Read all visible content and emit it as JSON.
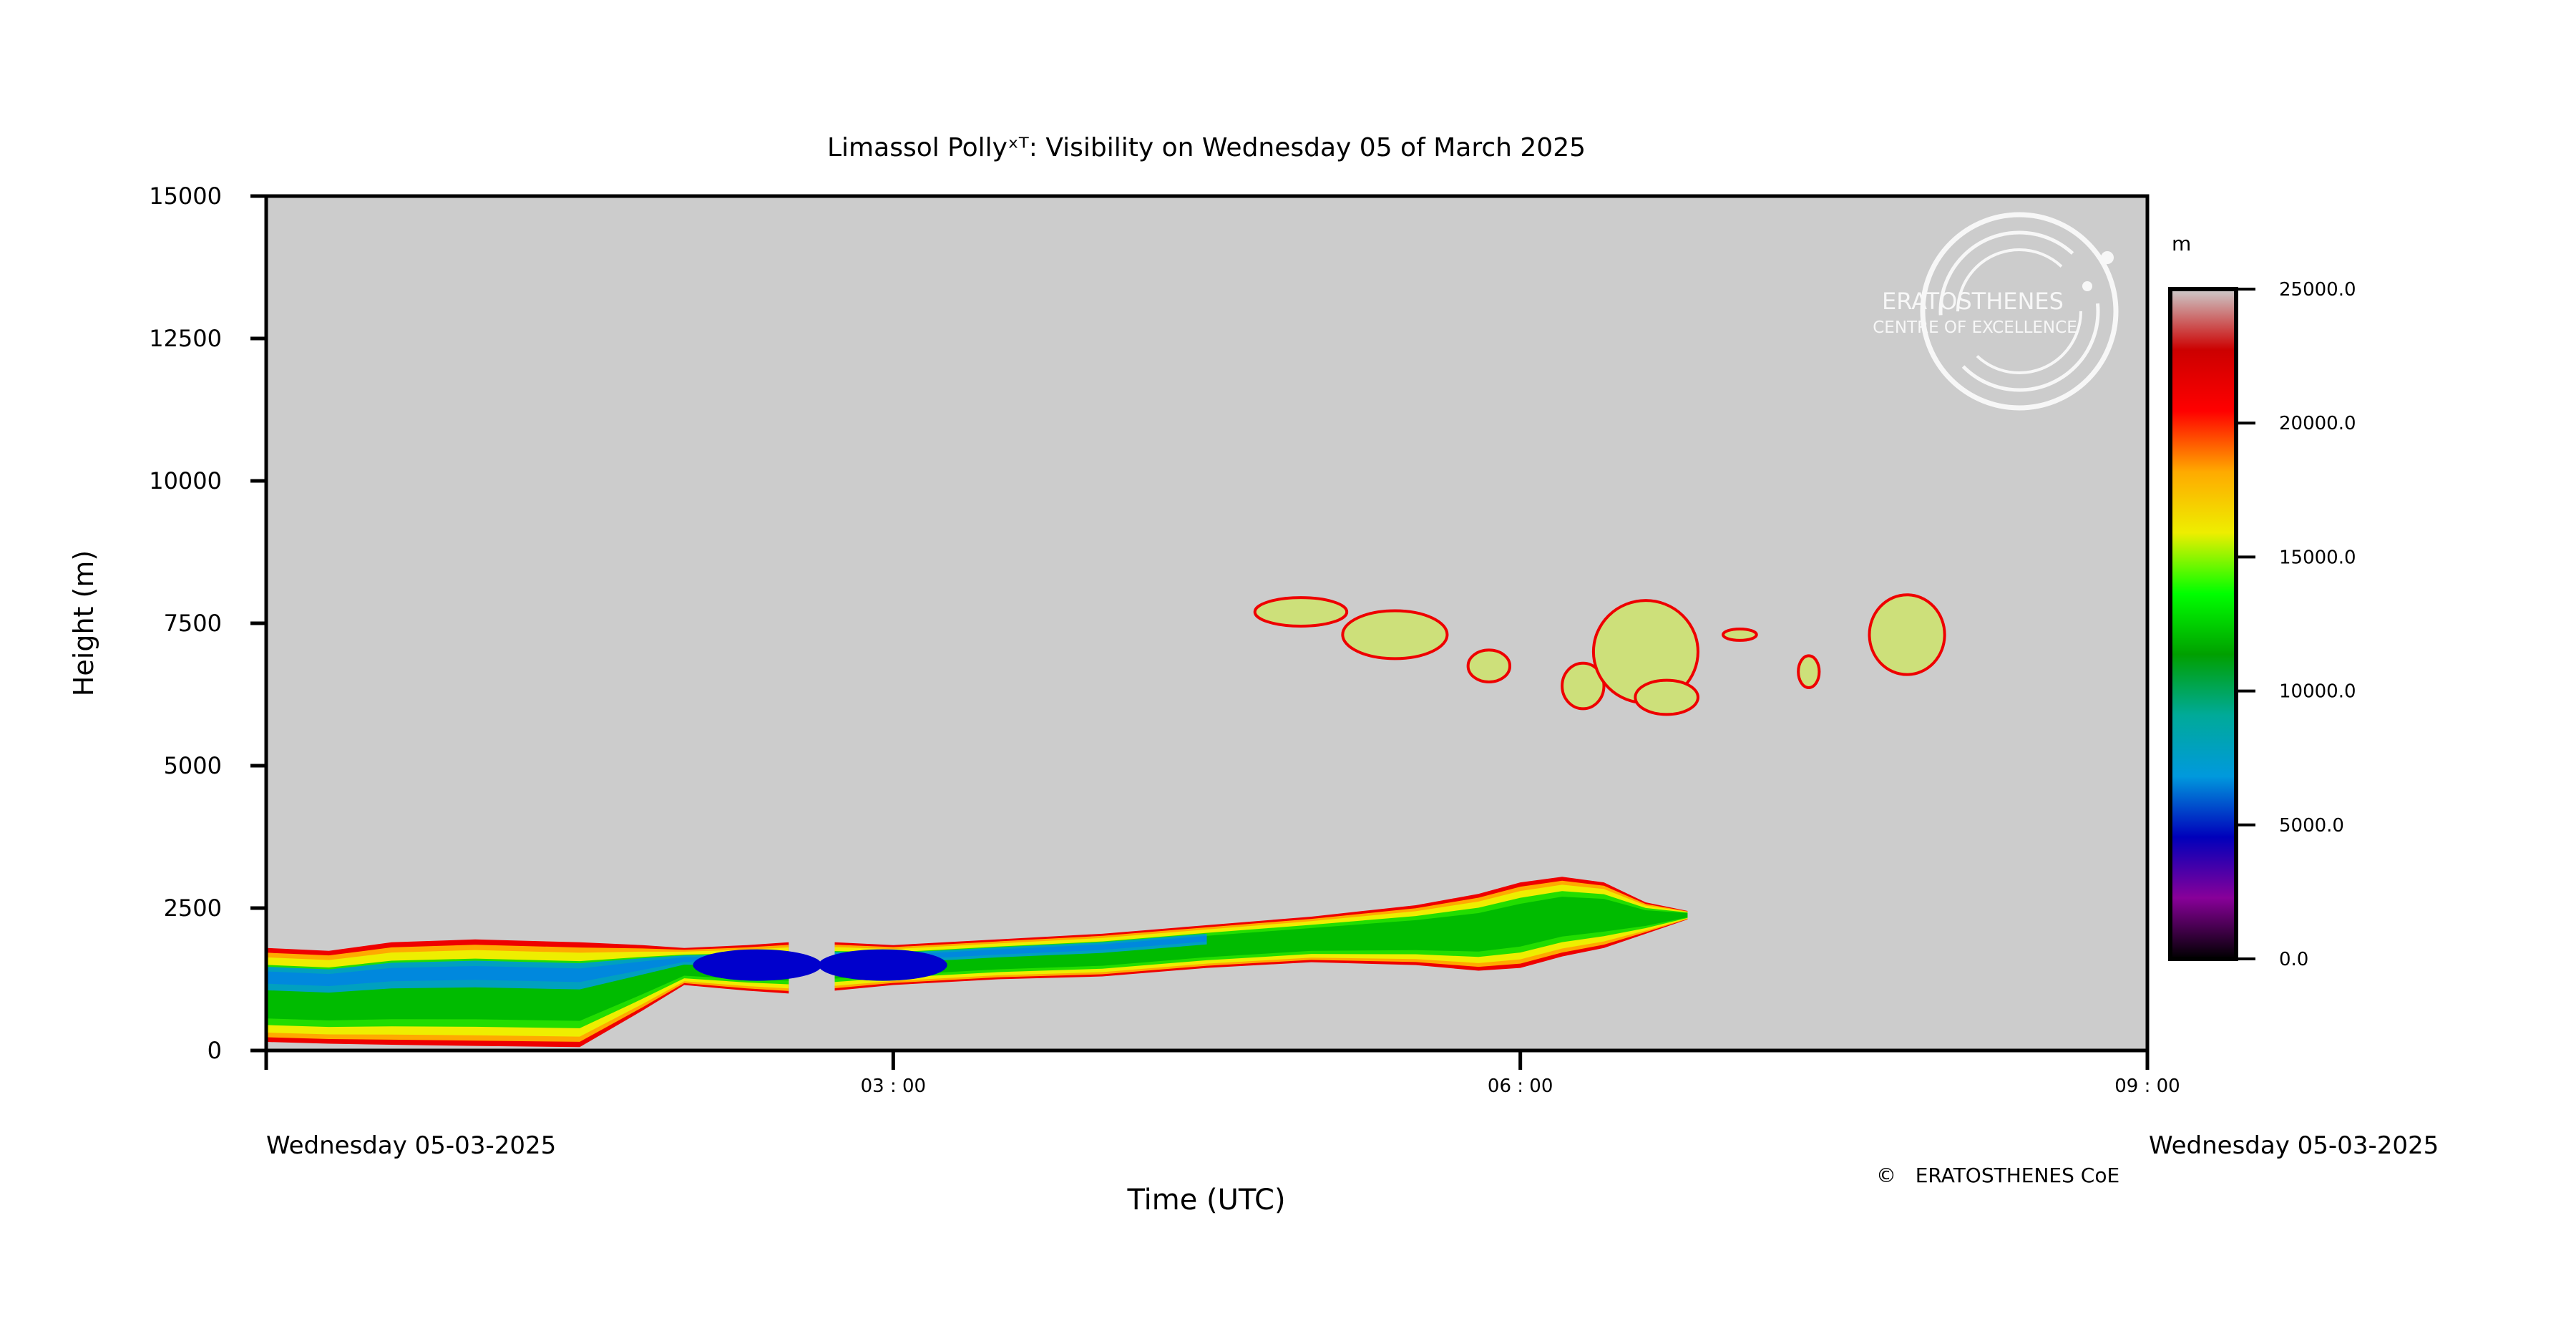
{
  "chart_data": {
    "type": "heatmap",
    "title": "Limassol Pollyˣᵀ: Visibility on Wednesday 05 of March 2025",
    "xlabel": "Time (UTC)",
    "ylabel": "Height (m)",
    "xlim_hours": [
      0,
      9
    ],
    "ylim": [
      0,
      15000
    ],
    "x_ticks": [
      {
        "value": 0,
        "label": ""
      },
      {
        "value": 3,
        "label": "03 : 00"
      },
      {
        "value": 6,
        "label": "06 : 00"
      },
      {
        "value": 9,
        "label": "09 : 00"
      }
    ],
    "y_ticks": [
      {
        "value": 0,
        "label": "0"
      },
      {
        "value": 2500,
        "label": "2500"
      },
      {
        "value": 5000,
        "label": "5000"
      },
      {
        "value": 7500,
        "label": "7500"
      },
      {
        "value": 10000,
        "label": "10000"
      },
      {
        "value": 12500,
        "label": "12500"
      },
      {
        "value": 15000,
        "label": "15000"
      }
    ],
    "date_left": "Wednesday 05-03-2025",
    "date_right": "Wednesday 05-03-2025",
    "background_color": "#cccccc",
    "colorbar": {
      "unit": "m",
      "range": [
        0,
        25000
      ],
      "ticks": [
        {
          "value": 25000,
          "label": "25000.0"
        },
        {
          "value": 20000,
          "label": "20000.0"
        },
        {
          "value": 15000,
          "label": "15000.0"
        },
        {
          "value": 10000,
          "label": "10000.0"
        },
        {
          "value": 5000,
          "label": "5000.0"
        },
        {
          "value": 0,
          "label": "0.0"
        }
      ],
      "colors": [
        "#000000",
        "#880099",
        "#0000bb",
        "#0099dd",
        "#00aa99",
        "#00a000",
        "#00ff00",
        "#eeee00",
        "#ffaa00",
        "#ff0000",
        "#cc0000",
        "#cccccc"
      ]
    },
    "data_gap_hours": [
      2.5,
      2.72
    ],
    "boundary_layer": {
      "time_hours": [
        0,
        0.3,
        0.6,
        1.0,
        1.5,
        1.8,
        2.0,
        2.3,
        2.5,
        2.72,
        3.0,
        3.5,
        4.0,
        4.5,
        5.0,
        5.5,
        5.8,
        6.0,
        6.2,
        6.4,
        6.6,
        6.8
      ],
      "top_m": [
        1800,
        1750,
        1900,
        1950,
        1900,
        1850,
        1800,
        1850,
        1900,
        1900,
        1850,
        1950,
        2050,
        2200,
        2350,
        2550,
        2750,
        2950,
        3050,
        2950,
        2600,
        2450
      ],
      "bottom_m": [
        150,
        120,
        100,
        80,
        60,
        700,
        1150,
        1050,
        1000,
        1050,
        1150,
        1250,
        1300,
        1450,
        1550,
        1500,
        1400,
        1450,
        1650,
        1800,
        2050,
        2300
      ],
      "core_min_visibility_m": 4000
    },
    "cloud_patches": [
      {
        "time_h": 4.95,
        "height_m": 7700,
        "dt": 0.22,
        "dh": 250
      },
      {
        "time_h": 5.4,
        "height_m": 7300,
        "dt": 0.25,
        "dh": 420
      },
      {
        "time_h": 5.85,
        "height_m": 6750,
        "dt": 0.1,
        "dh": 280
      },
      {
        "time_h": 6.3,
        "height_m": 6400,
        "dt": 0.1,
        "dh": 400
      },
      {
        "time_h": 6.6,
        "height_m": 7000,
        "dt": 0.25,
        "dh": 900
      },
      {
        "time_h": 6.7,
        "height_m": 6200,
        "dt": 0.15,
        "dh": 300
      },
      {
        "time_h": 7.05,
        "height_m": 7300,
        "dt": 0.08,
        "dh": 100
      },
      {
        "time_h": 7.38,
        "height_m": 6650,
        "dt": 0.05,
        "dh": 280
      },
      {
        "time_h": 7.85,
        "height_m": 7300,
        "dt": 0.18,
        "dh": 700
      }
    ],
    "watermark": {
      "line1": "ERATOSTHENES",
      "line2": "CENTRE OF EXCELLENCE"
    },
    "copyright": "©   ERATOSTHENES CoE"
  }
}
